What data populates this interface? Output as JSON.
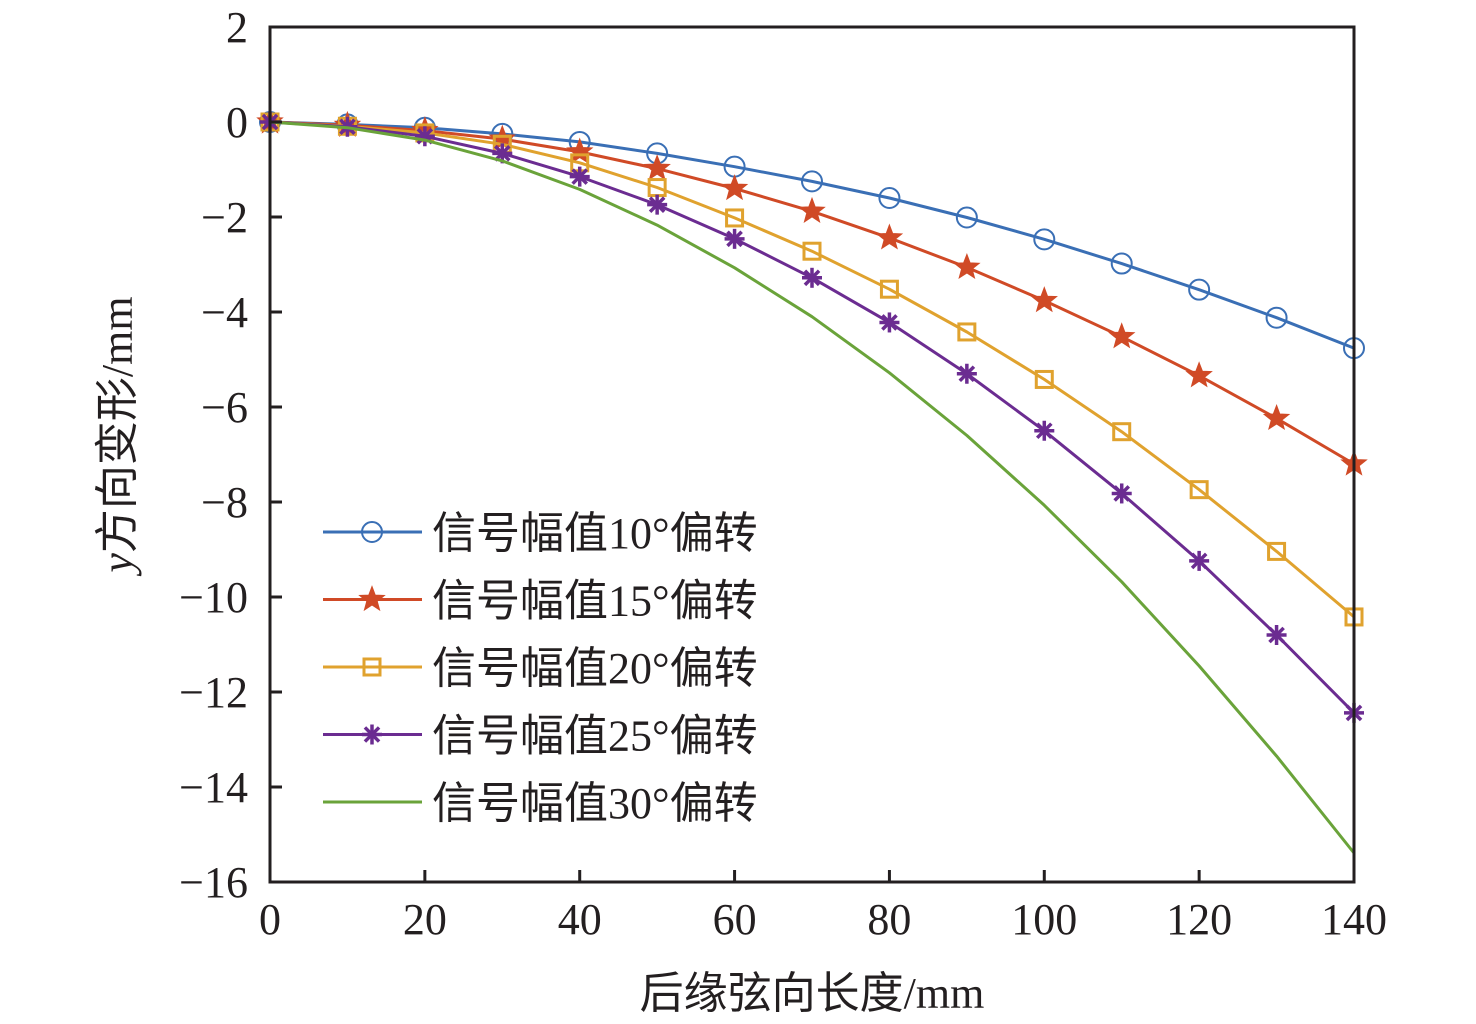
{
  "chart_data": {
    "type": "line",
    "title": "",
    "xlabel": "后缘弦向长度/mm",
    "ylabel_italic": "y",
    "ylabel": "方向变形/mm",
    "xlim": [
      0,
      140
    ],
    "ylim": [
      -16,
      2
    ],
    "xticks": [
      0,
      20,
      40,
      60,
      80,
      100,
      120,
      140
    ],
    "yticks": [
      2,
      0,
      -2,
      -4,
      -6,
      -8,
      -10,
      -12,
      -14,
      -16
    ],
    "xtick_labels": [
      "0",
      "20",
      "40",
      "60",
      "80",
      "100",
      "120",
      "140"
    ],
    "ytick_labels": [
      "2",
      "0",
      "−2",
      "−4",
      "−6",
      "−8",
      "−10",
      "−12",
      "−14",
      "−16"
    ],
    "grid": false,
    "legend_position": "bottom-left",
    "x": [
      0,
      10,
      20,
      30,
      40,
      50,
      60,
      70,
      80,
      90,
      100,
      110,
      120,
      130,
      140
    ],
    "series": [
      {
        "name": "信号幅值10°偏转",
        "color": "#3a6fb5",
        "marker": "circle",
        "values": [
          0,
          -0.05,
          -0.12,
          -0.25,
          -0.42,
          -0.66,
          -0.94,
          -1.25,
          -1.6,
          -2.01,
          -2.47,
          -2.98,
          -3.53,
          -4.12,
          -4.76
        ]
      },
      {
        "name": "信号幅值15°偏转",
        "color": "#d04a26",
        "marker": "star",
        "values": [
          0,
          -0.07,
          -0.18,
          -0.36,
          -0.63,
          -0.98,
          -1.4,
          -1.88,
          -2.44,
          -3.06,
          -3.76,
          -4.52,
          -5.34,
          -6.24,
          -7.2
        ]
      },
      {
        "name": "信号幅值20°偏转",
        "color": "#e0a22e",
        "marker": "square",
        "values": [
          0,
          -0.09,
          -0.23,
          -0.47,
          -0.86,
          -1.38,
          -2.02,
          -2.72,
          -3.52,
          -4.42,
          -5.42,
          -6.52,
          -7.74,
          -9.04,
          -10.42
        ]
      },
      {
        "name": "信号幅值25°偏转",
        "color": "#6b2c91",
        "marker": "asterisk",
        "values": [
          0,
          -0.1,
          -0.3,
          -0.66,
          -1.15,
          -1.74,
          -2.46,
          -3.28,
          -4.22,
          -5.3,
          -6.5,
          -7.82,
          -9.24,
          -10.8,
          -12.44
        ]
      },
      {
        "name": "信号幅值30°偏转",
        "color": "#6aa33a",
        "marker": "none",
        "values": [
          0,
          -0.12,
          -0.38,
          -0.82,
          -1.42,
          -2.17,
          -3.07,
          -4.1,
          -5.28,
          -6.6,
          -8.07,
          -9.68,
          -11.45,
          -13.35,
          -15.39
        ]
      }
    ]
  }
}
